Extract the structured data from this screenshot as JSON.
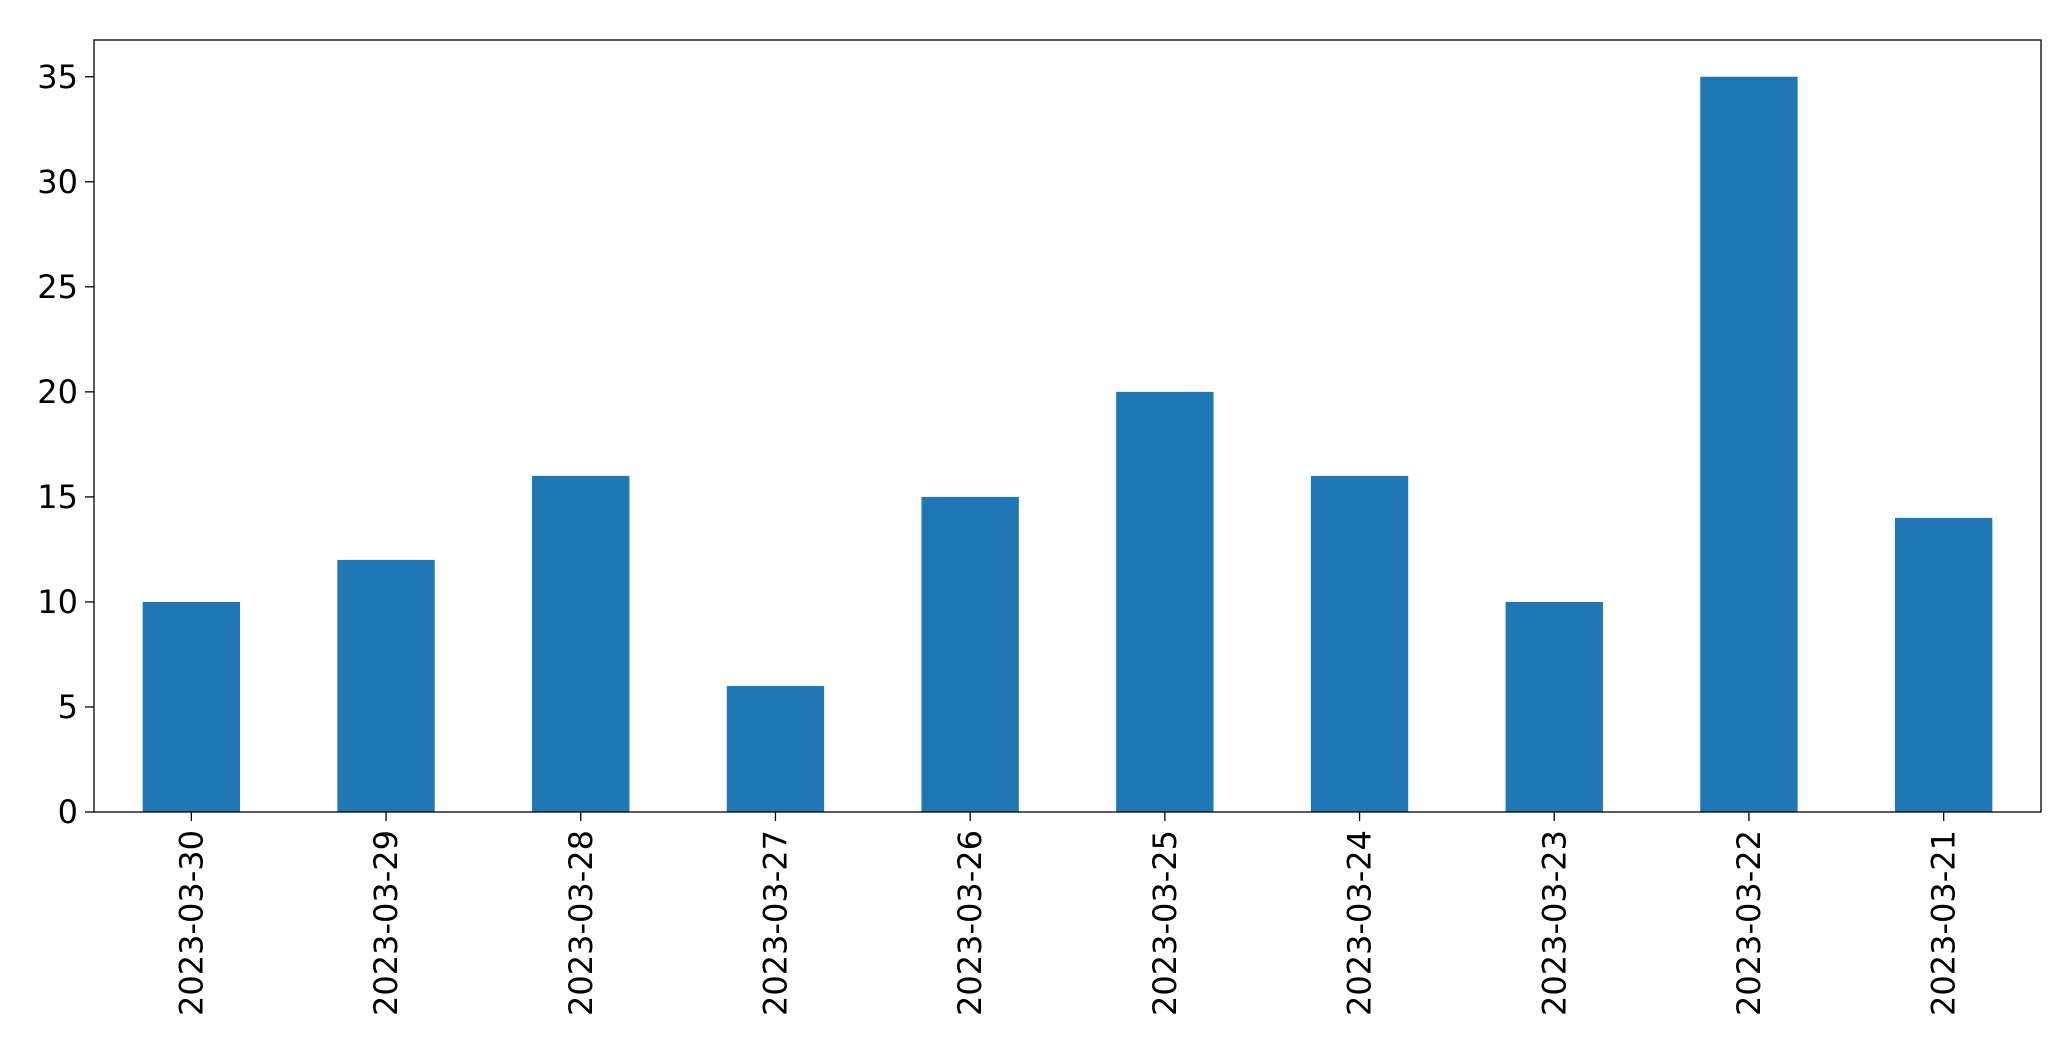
{
  "chart_data": {
    "type": "bar",
    "categories": [
      "2023-03-30",
      "2023-03-29",
      "2023-03-28",
      "2023-03-27",
      "2023-03-26",
      "2023-03-25",
      "2023-03-24",
      "2023-03-23",
      "2023-03-22",
      "2023-03-21"
    ],
    "values": [
      10,
      12,
      16,
      6,
      15,
      20,
      16,
      10,
      35,
      14
    ],
    "color": "#1f77b4",
    "ylim": [
      0,
      36.75
    ],
    "yticks": [
      0,
      5,
      10,
      15,
      20,
      25,
      30,
      35
    ],
    "grid": false
  }
}
